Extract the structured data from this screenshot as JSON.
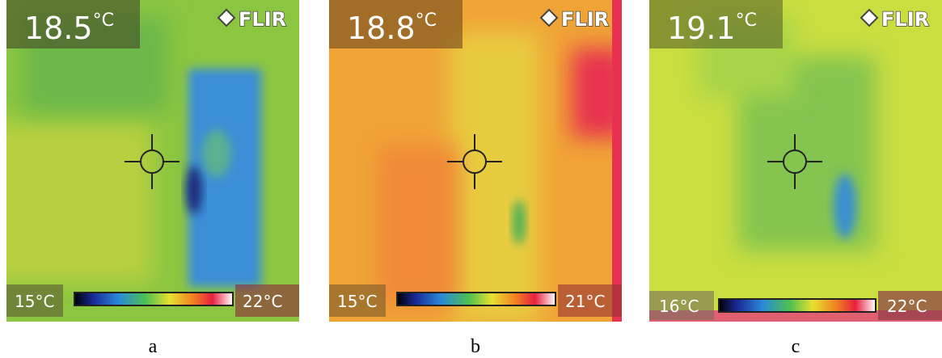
{
  "panels": [
    {
      "reading": "18.5",
      "reading_unit": "°C",
      "logo": "FLIR",
      "scale_min": "15°C",
      "scale_max": "22°C",
      "caption": "a"
    },
    {
      "reading": "18.8",
      "reading_unit": "°C",
      "logo": "FLIR",
      "scale_min": "15°C",
      "scale_max": "21°C",
      "caption": "b"
    },
    {
      "reading": "19.1",
      "reading_unit": "°C",
      "logo": "FLIR",
      "scale_min": "16°C",
      "scale_max": "22°C",
      "caption": "c"
    }
  ]
}
